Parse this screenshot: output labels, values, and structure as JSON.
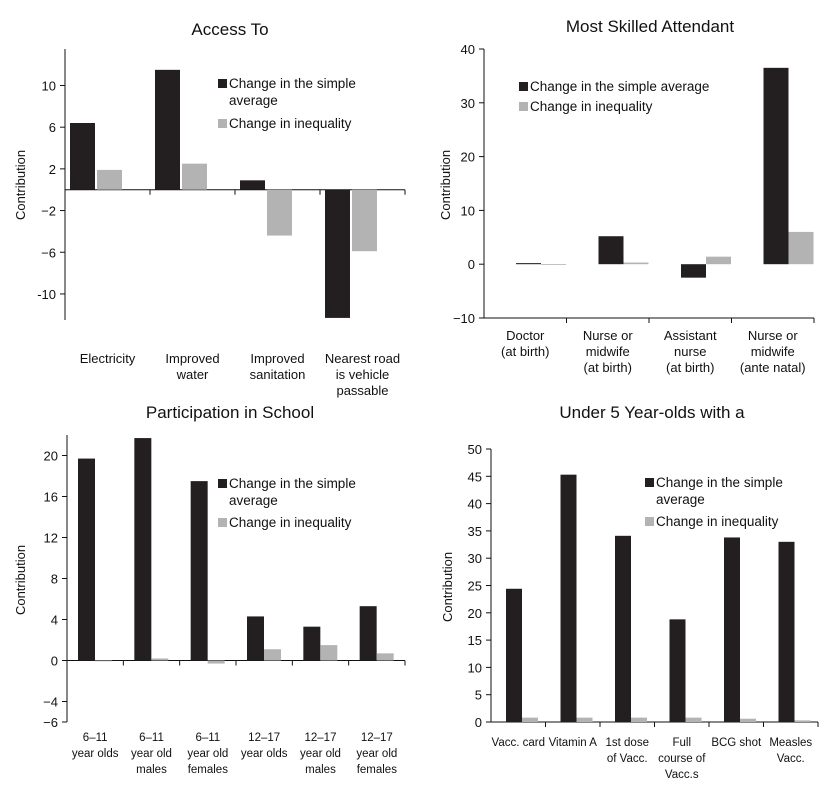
{
  "colors": {
    "average": "#231f20",
    "inequality": "#b3b3b3"
  },
  "legend": {
    "average": "Change in the simple average",
    "inequality": "Change in inequality"
  },
  "chart_data": [
    {
      "type": "bar",
      "title": "Access To",
      "ylabel": "Contribution",
      "ylim": [
        -12.5,
        13.5
      ],
      "yticks": [
        10,
        6,
        2,
        -2,
        -6,
        -10
      ],
      "ytick_labels": [
        "10",
        "6",
        "2",
        "−2",
        "−6",
        "-10"
      ],
      "zero_axis": true,
      "categories": [
        [
          "Electricity"
        ],
        [
          "Improved",
          "water"
        ],
        [
          "Improved",
          "sanitation"
        ],
        [
          "Nearest road",
          "is vehicle",
          "passable"
        ]
      ],
      "series": [
        {
          "name": "Change in the simple average",
          "key": "average",
          "values": [
            6.4,
            11.5,
            0.9,
            -12.3
          ]
        },
        {
          "name": "Change in inequality",
          "key": "inequality",
          "values": [
            1.9,
            2.5,
            -4.4,
            -5.9
          ]
        }
      ],
      "legend_position": "top-right"
    },
    {
      "type": "bar",
      "title": "Most Skilled Attendant",
      "ylabel": "Contribution",
      "ylim": [
        -10,
        40
      ],
      "yticks": [
        40,
        30,
        20,
        10,
        0,
        -10
      ],
      "ytick_labels": [
        "40",
        "30",
        "20",
        "10",
        "0",
        "−10"
      ],
      "zero_axis": false,
      "categories": [
        [
          "Doctor",
          "(at birth)"
        ],
        [
          "Nurse or",
          "midwife",
          "(at birth)"
        ],
        [
          "Assistant",
          "nurse",
          "(at birth)"
        ],
        [
          "Nurse or",
          "midwife",
          "(ante natal)"
        ]
      ],
      "series": [
        {
          "name": "Change in the simple average",
          "key": "average",
          "values": [
            0.2,
            5.2,
            -2.5,
            36.5
          ]
        },
        {
          "name": "Change in inequality",
          "key": "inequality",
          "values": [
            0,
            0.3,
            1.4,
            6.0
          ]
        }
      ],
      "legend_position": "top-left"
    },
    {
      "type": "bar",
      "title": "Participation in School",
      "ylabel": "Contribution",
      "ylim": [
        -6,
        22
      ],
      "yticks": [
        20,
        16,
        12,
        8,
        4,
        0,
        -4,
        -6
      ],
      "ytick_labels": [
        "20",
        "16",
        "12",
        "8",
        "4",
        "0",
        "−4",
        "−6"
      ],
      "zero_axis": true,
      "categories": [
        [
          "6–11",
          "year olds"
        ],
        [
          "6–11",
          "year old",
          "males"
        ],
        [
          "6–11",
          "year old",
          "females"
        ],
        [
          "12–17",
          "year olds"
        ],
        [
          "12–17",
          "year old",
          "males"
        ],
        [
          "12–17",
          "year old",
          "females"
        ]
      ],
      "series": [
        {
          "name": "Change in the simple average",
          "key": "average",
          "values": [
            19.7,
            21.7,
            17.5,
            4.3,
            3.3,
            5.3
          ]
        },
        {
          "name": "Change in inequality",
          "key": "inequality",
          "values": [
            0,
            0.2,
            -0.3,
            1.1,
            1.5,
            0.7
          ]
        }
      ],
      "legend_position": "top-right"
    },
    {
      "type": "bar",
      "title": "Under 5 Year-olds with a",
      "ylabel": "Contribution",
      "ylim": [
        0,
        50
      ],
      "yticks": [
        50,
        45,
        40,
        35,
        30,
        25,
        20,
        15,
        10,
        5,
        0
      ],
      "ytick_labels": [
        "50",
        "45",
        "40",
        "35",
        "30",
        "25",
        "20",
        "15",
        "10",
        "5",
        "0"
      ],
      "zero_axis": false,
      "categories": [
        [
          "Vacc. card"
        ],
        [
          "Vitamin A"
        ],
        [
          "1st dose",
          "of Vacc."
        ],
        [
          "Full",
          "course of",
          "Vacc.s"
        ],
        [
          "BCG shot"
        ],
        [
          "Measles",
          "Vacc."
        ]
      ],
      "series": [
        {
          "name": "Change in the simple average",
          "key": "average",
          "values": [
            24.4,
            45.3,
            34.1,
            18.8,
            33.8,
            33.0
          ]
        },
        {
          "name": "Change in inequality",
          "key": "inequality",
          "values": [
            0.8,
            0.8,
            0.8,
            0.8,
            0.6,
            0.3
          ]
        }
      ],
      "legend_position": "top-right"
    }
  ]
}
